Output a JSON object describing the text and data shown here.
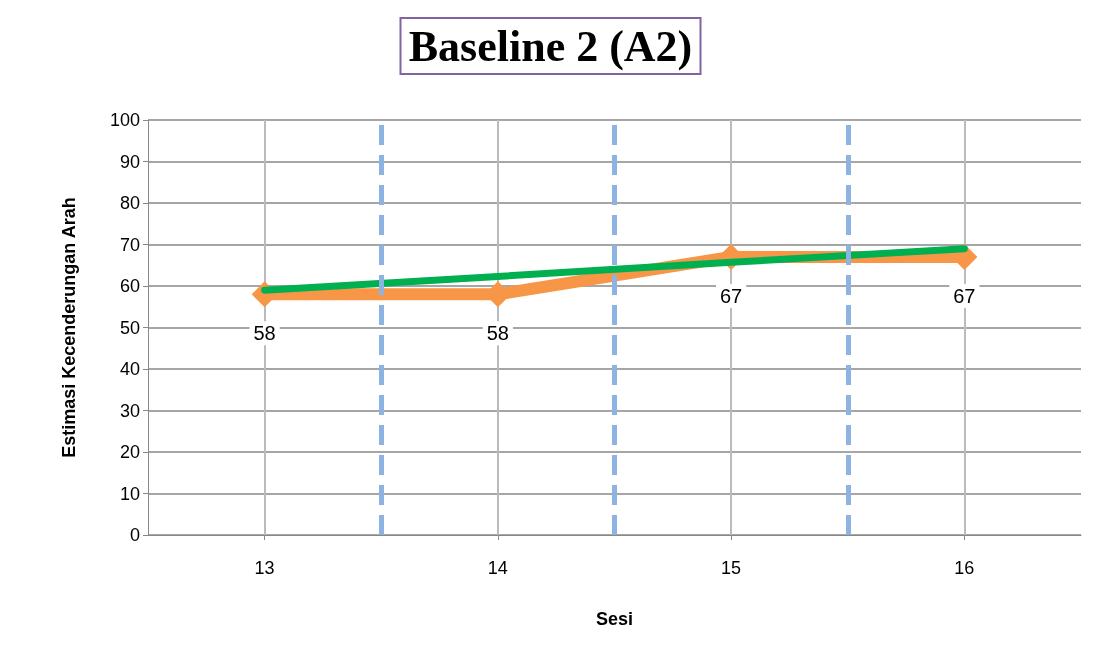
{
  "chart_data": {
    "type": "line",
    "title": "Baseline 2 (A2)",
    "xlabel": "Sesi",
    "ylabel": "Estimasi Kecenderungan Arah",
    "x": [
      13,
      14,
      15,
      16
    ],
    "xlim": [
      12.5,
      16.5
    ],
    "xticks": [
      13,
      14,
      15,
      16
    ],
    "ylim": [
      0,
      100
    ],
    "yticks": [
      0,
      10,
      20,
      30,
      40,
      50,
      60,
      70,
      80,
      90,
      100
    ],
    "grid": true,
    "series": [
      {
        "color": "#f79646",
        "values": [
          58,
          58,
          67,
          67
        ],
        "marker": "diamond",
        "value_labels": [
          "58",
          "58",
          "67",
          "67"
        ]
      },
      {
        "type": "line",
        "color": "#00b050",
        "values": [
          59,
          62.3,
          65.7,
          69
        ],
        "marker": "none"
      }
    ],
    "ref_lines": [
      {
        "axis": "x",
        "value": 13.5,
        "color": "#8db3e2",
        "line_style": "dashed"
      },
      {
        "axis": "x",
        "value": 14.5,
        "color": "#8db3e2",
        "line_style": "dashed"
      },
      {
        "axis": "x",
        "value": 15.5,
        "color": "#8db3e2",
        "line_style": "dashed"
      }
    ]
  }
}
